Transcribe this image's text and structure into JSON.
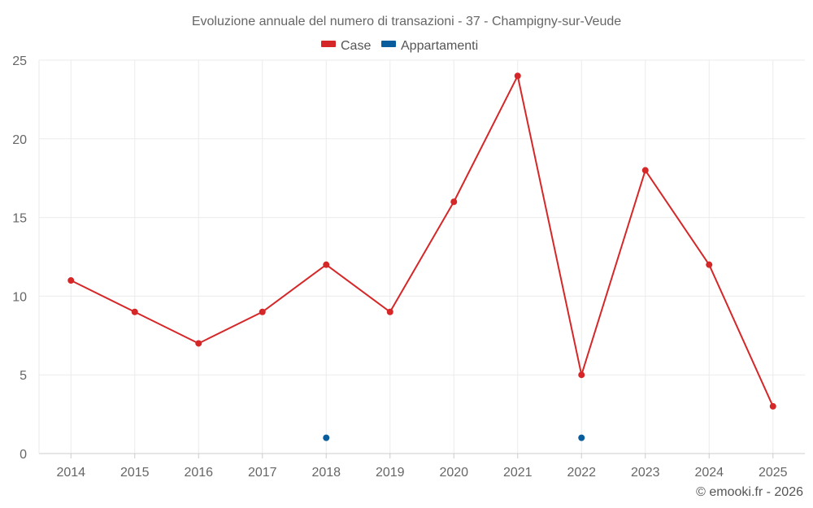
{
  "chart_data": {
    "type": "line",
    "title": "Evoluzione annuale del numero di transazioni - 37 - Champigny-sur-Veude",
    "categories": [
      "2014",
      "2015",
      "2016",
      "2017",
      "2018",
      "2019",
      "2020",
      "2021",
      "2022",
      "2023",
      "2024",
      "2025"
    ],
    "series": [
      {
        "name": "Case",
        "color": "#d62728",
        "values": [
          11,
          9,
          7,
          9,
          12,
          9,
          16,
          24,
          5,
          18,
          12,
          3
        ]
      },
      {
        "name": "Appartamenti",
        "color": "#0a5d9c",
        "values": [
          null,
          null,
          null,
          null,
          1,
          null,
          null,
          null,
          1,
          null,
          null,
          null
        ]
      }
    ],
    "ylim": [
      0,
      25
    ],
    "yticks": [
      0,
      5,
      10,
      15,
      20,
      25
    ],
    "xlabel": "",
    "ylabel": "",
    "grid": true,
    "legend": "top-center"
  },
  "credit": "© emooki.fr - 2026"
}
